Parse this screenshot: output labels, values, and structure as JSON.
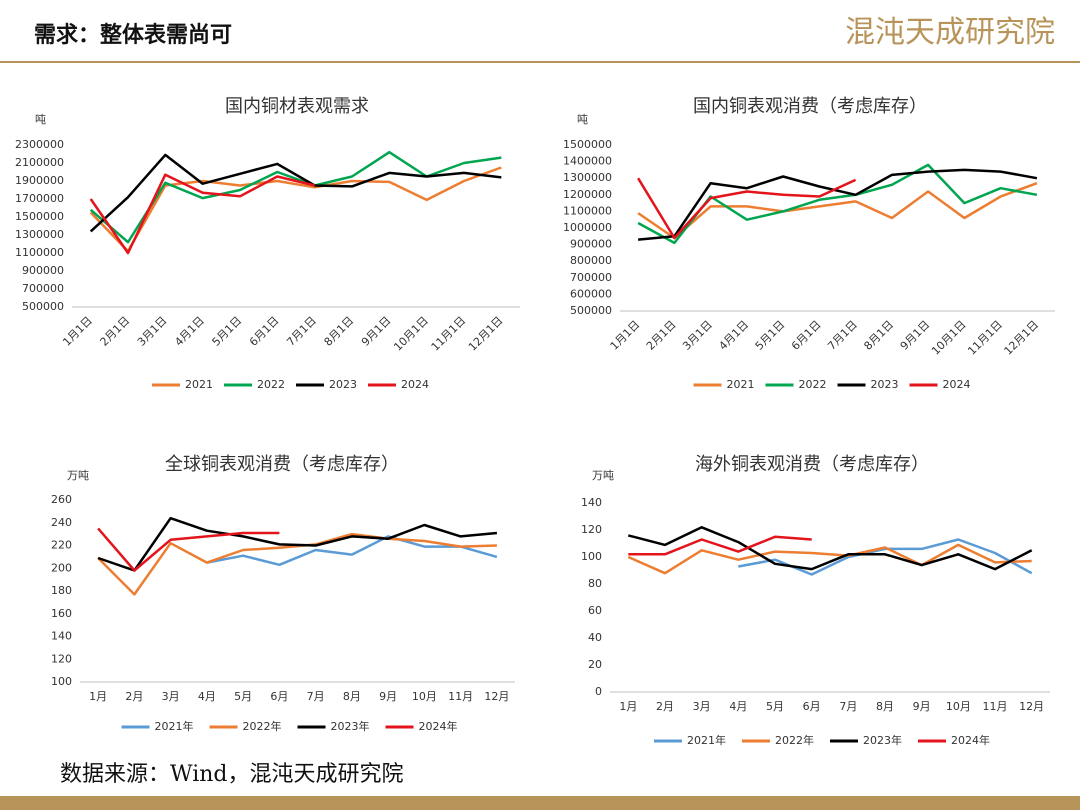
{
  "title": "需求：整体表需尚可",
  "logo": "混沌天成研究院",
  "source": "数据来源：Wind，混沌天成研究院",
  "chart_data": [
    {
      "type": "line",
      "title": "国内铜材表观需求",
      "y_label": "吨",
      "categories": [
        "1月1日",
        "2月1日",
        "3月1日",
        "4月1日",
        "5月1日",
        "6月1日",
        "7月1日",
        "8月1日",
        "9月1日",
        "10月1日",
        "11月1日",
        "12月1日"
      ],
      "ylim": [
        500000,
        2300000
      ],
      "yticks": [
        500000,
        700000,
        900000,
        1100000,
        1300000,
        1500000,
        1700000,
        1900000,
        2100000,
        2300000
      ],
      "series": [
        {
          "name": "2021",
          "color": "#ed7d31",
          "values": [
            1550000,
            1120000,
            1850000,
            1900000,
            1850000,
            1900000,
            1830000,
            1900000,
            1890000,
            1690000,
            1900000,
            2050000
          ]
        },
        {
          "name": "2022",
          "color": "#00a550",
          "values": [
            1580000,
            1220000,
            1880000,
            1710000,
            1800000,
            2000000,
            1850000,
            1950000,
            2220000,
            1950000,
            2100000,
            2160000
          ]
        },
        {
          "name": "2023",
          "color": "#000000",
          "values": [
            1340000,
            1720000,
            2190000,
            1870000,
            1980000,
            2090000,
            1850000,
            1840000,
            1990000,
            1950000,
            1990000,
            1940000
          ]
        },
        {
          "name": "2024",
          "color": "#e3141c",
          "values": [
            1700000,
            1100000,
            1970000,
            1770000,
            1730000,
            1950000,
            1850000,
            null,
            null,
            null,
            null,
            null
          ]
        }
      ]
    },
    {
      "type": "line",
      "title": "国内铜表观消费（考虑库存）",
      "y_label": "吨",
      "categories": [
        "1月1日",
        "2月1日",
        "3月1日",
        "4月1日",
        "5月1日",
        "6月1日",
        "7月1日",
        "8月1日",
        "9月1日",
        "10月1日",
        "11月1日",
        "12月1日"
      ],
      "ylim": [
        500000,
        1500000
      ],
      "yticks": [
        500000,
        600000,
        700000,
        800000,
        900000,
        1000000,
        1100000,
        1200000,
        1300000,
        1400000,
        1500000
      ],
      "series": [
        {
          "name": "2021",
          "color": "#ed7d31",
          "values": [
            1090000,
            940000,
            1130000,
            1130000,
            1100000,
            1130000,
            1160000,
            1060000,
            1220000,
            1060000,
            1190000,
            1270000
          ]
        },
        {
          "name": "2022",
          "color": "#00a550",
          "values": [
            1030000,
            910000,
            1190000,
            1050000,
            1100000,
            1170000,
            1200000,
            1260000,
            1380000,
            1150000,
            1240000,
            1200000
          ]
        },
        {
          "name": "2023",
          "color": "#000000",
          "values": [
            930000,
            950000,
            1270000,
            1240000,
            1310000,
            1250000,
            1200000,
            1320000,
            1340000,
            1350000,
            1340000,
            1300000
          ]
        },
        {
          "name": "2024",
          "color": "#e3141c",
          "values": [
            1300000,
            940000,
            1180000,
            1220000,
            1200000,
            1190000,
            1290000,
            null,
            null,
            null,
            null,
            null
          ]
        }
      ]
    },
    {
      "type": "line",
      "title": "全球铜表观消费（考虑库存）",
      "y_label": "万吨",
      "categories": [
        "1月",
        "2月",
        "3月",
        "4月",
        "5月",
        "6月",
        "7月",
        "8月",
        "9月",
        "10月",
        "11月",
        "12月"
      ],
      "ylim": [
        100,
        260
      ],
      "yticks": [
        100,
        120,
        140,
        160,
        180,
        200,
        220,
        240,
        260
      ],
      "series": [
        {
          "name": "2021年",
          "color": "#5b9bd5",
          "values": [
            null,
            null,
            null,
            205,
            211,
            203,
            216,
            212,
            228,
            219,
            219,
            210
          ]
        },
        {
          "name": "2022年",
          "color": "#ed7d31",
          "values": [
            209,
            177,
            222,
            205,
            216,
            218,
            221,
            230,
            226,
            224,
            219,
            220
          ]
        },
        {
          "name": "2023年",
          "color": "#000000",
          "values": [
            209,
            198,
            244,
            233,
            228,
            221,
            220,
            228,
            226,
            238,
            228,
            231
          ]
        },
        {
          "name": "2024年",
          "color": "#e3141c",
          "values": [
            235,
            198,
            225,
            228,
            231,
            231,
            null,
            null,
            null,
            null,
            null,
            null
          ]
        }
      ]
    },
    {
      "type": "line",
      "title": "海外铜表观消费（考虑库存）",
      "y_label": "万吨",
      "categories": [
        "1月",
        "2月",
        "3月",
        "4月",
        "5月",
        "6月",
        "7月",
        "8月",
        "9月",
        "10月",
        "11月",
        "12月"
      ],
      "ylim": [
        0,
        140
      ],
      "yticks": [
        0,
        20,
        40,
        60,
        80,
        100,
        120,
        140
      ],
      "series": [
        {
          "name": "2021年",
          "color": "#5b9bd5",
          "values": [
            null,
            null,
            null,
            93,
            98,
            87,
            100,
            106,
            106,
            113,
            103,
            88
          ]
        },
        {
          "name": "2022年",
          "color": "#ed7d31",
          "values": [
            100,
            88,
            105,
            98,
            104,
            103,
            101,
            107,
            94,
            109,
            96,
            97
          ]
        },
        {
          "name": "2023年",
          "color": "#000000",
          "values": [
            116,
            109,
            122,
            111,
            95,
            91,
            102,
            102,
            94,
            102,
            91,
            105
          ]
        },
        {
          "name": "2024年",
          "color": "#e3141c",
          "values": [
            102,
            102,
            113,
            104,
            115,
            113,
            null,
            null,
            null,
            null,
            null,
            null
          ]
        }
      ]
    }
  ]
}
